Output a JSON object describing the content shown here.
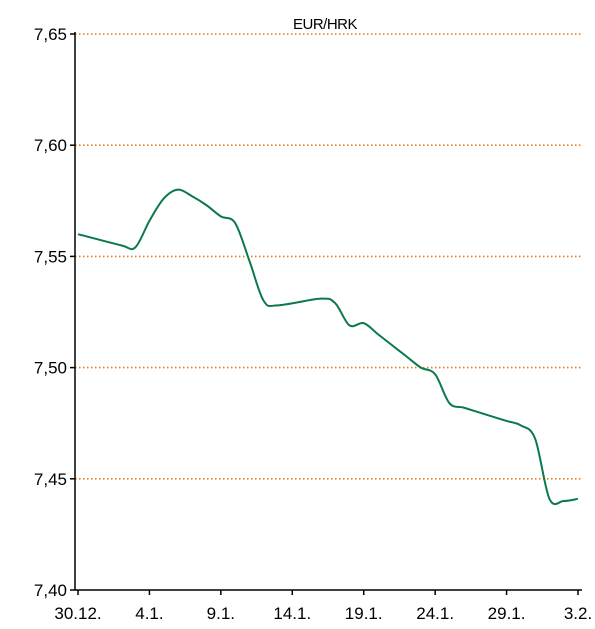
{
  "chart_data": {
    "type": "line",
    "title": "EUR/HRK",
    "xlabel": "",
    "ylabel": "",
    "grid": true,
    "legend": "none",
    "ylim": [
      7.4,
      7.65
    ],
    "yticks": [
      7.4,
      7.45,
      7.5,
      7.55,
      7.6,
      7.65
    ],
    "ytick_labels": [
      "7,40",
      "7,45",
      "7,50",
      "7,55",
      "7,60",
      "7,65"
    ],
    "xtick_labels": [
      "30.12.",
      "4.1.",
      "9.1.",
      "14.1.",
      "19.1.",
      "24.1.",
      "29.1.",
      "3.2."
    ],
    "colors": {
      "series": "#0a7a4a",
      "grid": "#e07b1f",
      "axis": "#000000"
    },
    "series": [
      {
        "x": [
          "30.12.",
          "2.1.",
          "3.1.",
          "4.1.",
          "5.1.",
          "6.1.",
          "7.1.",
          "8.1.",
          "9.1.",
          "10.1.",
          "11.1.",
          "12.1.",
          "13.1.",
          "16.1.",
          "17.1.",
          "18.1.",
          "19.1.",
          "20.1.",
          "21.1.",
          "22.1.",
          "23.1.",
          "24.1.",
          "25.1.",
          "26.1.",
          "27.1.",
          "28.1.",
          "29.1.",
          "30.1.",
          "31.1.",
          "1.2.",
          "2.2.",
          "3.2."
        ],
        "values": [
          7.56,
          7.555,
          7.554,
          7.566,
          7.576,
          7.58,
          7.577,
          7.573,
          7.568,
          7.565,
          7.548,
          7.53,
          7.528,
          7.531,
          7.529,
          7.519,
          7.52,
          7.515,
          7.51,
          7.505,
          7.5,
          7.497,
          7.484,
          7.482,
          7.48,
          7.478,
          7.476,
          7.474,
          7.468,
          7.441,
          7.44,
          7.441
        ]
      }
    ]
  }
}
